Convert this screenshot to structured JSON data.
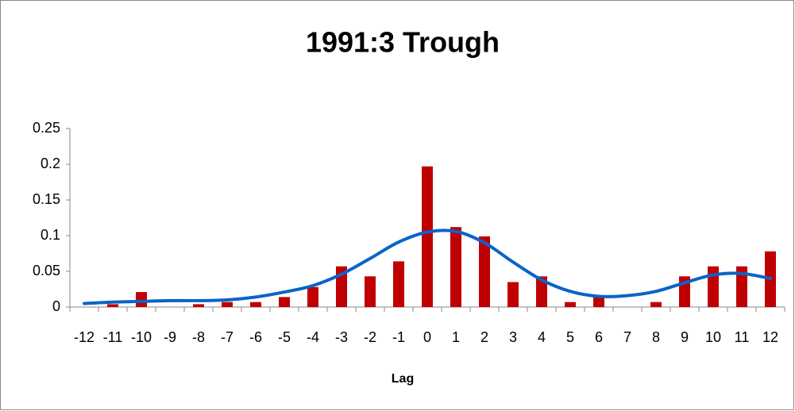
{
  "chart_data": {
    "type": "bar",
    "title": "1991:3 Trough",
    "x_label": "Lag",
    "categories": [
      "-12",
      "-11",
      "-10",
      "-9",
      "-8",
      "-7",
      "-6",
      "-5",
      "-4",
      "-3",
      "-2",
      "-1",
      "0",
      "1",
      "2",
      "3",
      "4",
      "5",
      "6",
      "7",
      "8",
      "9",
      "10",
      "11",
      "12"
    ],
    "series": [
      {
        "type": "bar",
        "color": "#c00000",
        "values": [
          0,
          0.004,
          0.021,
          0,
          0.004,
          0.007,
          0.007,
          0.014,
          0.028,
          0.057,
          0.043,
          0.064,
          0.197,
          0.112,
          0.099,
          0.035,
          0.043,
          0.007,
          0.014,
          0,
          0.007,
          0.043,
          0.057,
          0.057,
          0.078
        ]
      },
      {
        "type": "line",
        "color": "#0a64c8",
        "values": [
          0.005,
          0.007,
          0.008,
          0.009,
          0.009,
          0.01,
          0.014,
          0.021,
          0.03,
          0.046,
          0.068,
          0.091,
          0.105,
          0.106,
          0.09,
          0.063,
          0.038,
          0.022,
          0.015,
          0.016,
          0.022,
          0.034,
          0.045,
          0.047,
          0.04
        ]
      }
    ],
    "ylim": [
      0,
      0.25
    ],
    "yticks": [
      0,
      0.05,
      0.1,
      0.15,
      0.2,
      0.25
    ],
    "grid": false
  }
}
